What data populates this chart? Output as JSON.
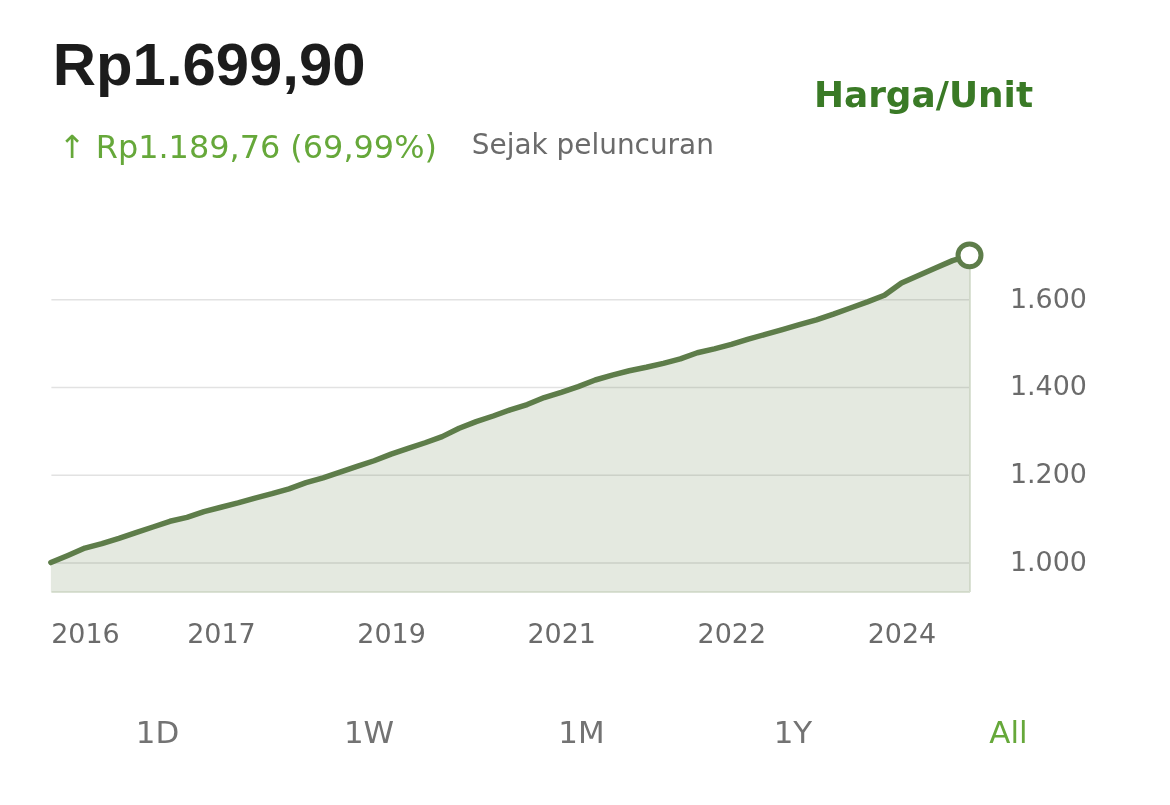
{
  "chart_data": {
    "type": "area",
    "title": "Rp1.699,90",
    "subtitle": "↑ Rp1.189,76 (69,99%)",
    "annotations": [
      "Sejak peluncuran",
      "Harga/Unit",
      "1D",
      "1W",
      "1M",
      "1Y",
      "All"
    ],
    "categories": [
      null,
      null,
      "2016",
      null,
      null,
      null,
      null,
      null,
      null,
      null,
      "2017",
      null,
      null,
      null,
      null,
      null,
      null,
      null,
      null,
      null,
      "2019",
      null,
      null,
      null,
      null,
      null,
      null,
      null,
      null,
      null,
      "2021",
      null,
      null,
      null,
      null,
      null,
      null,
      null,
      null,
      null,
      "2022",
      null,
      null,
      null,
      null,
      null,
      null,
      null,
      null,
      null,
      "2024",
      null,
      null,
      null,
      null
    ],
    "series": [
      {
        "color": "#5e7d4a",
        "values": [
          1000,
          1016,
          1033,
          1043,
          1055,
          1068,
          1081,
          1094,
          1103,
          1116,
          1126,
          1136,
          1147,
          1157,
          1168,
          1182,
          1193,
          1206,
          1219,
          1232,
          1247,
          1260,
          1273,
          1287,
          1306,
          1321,
          1334,
          1348,
          1360,
          1376,
          1388,
          1401,
          1416,
          1427,
          1437,
          1445,
          1454,
          1464,
          1478,
          1487,
          1497,
          1509,
          1520,
          1531,
          1542,
          1553,
          1566,
          1580,
          1594,
          1609,
          1637,
          1654,
          1671,
          1688,
          1700
        ]
      },
      {
        "type": "scatter",
        "color": "#5e7d4a",
        "marker": "circle",
        "values": [
          null,
          null,
          null,
          null,
          null,
          null,
          null,
          null,
          null,
          null,
          null,
          null,
          null,
          null,
          null,
          null,
          null,
          null,
          null,
          null,
          null,
          null,
          null,
          null,
          null,
          null,
          null,
          null,
          null,
          null,
          null,
          null,
          null,
          null,
          null,
          null,
          null,
          null,
          null,
          null,
          null,
          null,
          null,
          null,
          null,
          null,
          null,
          null,
          null,
          null,
          null,
          null,
          null,
          null,
          1700
        ]
      }
    ],
    "ylim": [
      934,
      1700
    ],
    "yticks": [
      {
        "value": 1000,
        "label": "1.000"
      },
      {
        "value": 1200,
        "label": "1.200"
      },
      {
        "value": 1400,
        "label": "1.400"
      },
      {
        "value": 1600,
        "label": "1.600"
      }
    ],
    "grid": "y"
  }
}
